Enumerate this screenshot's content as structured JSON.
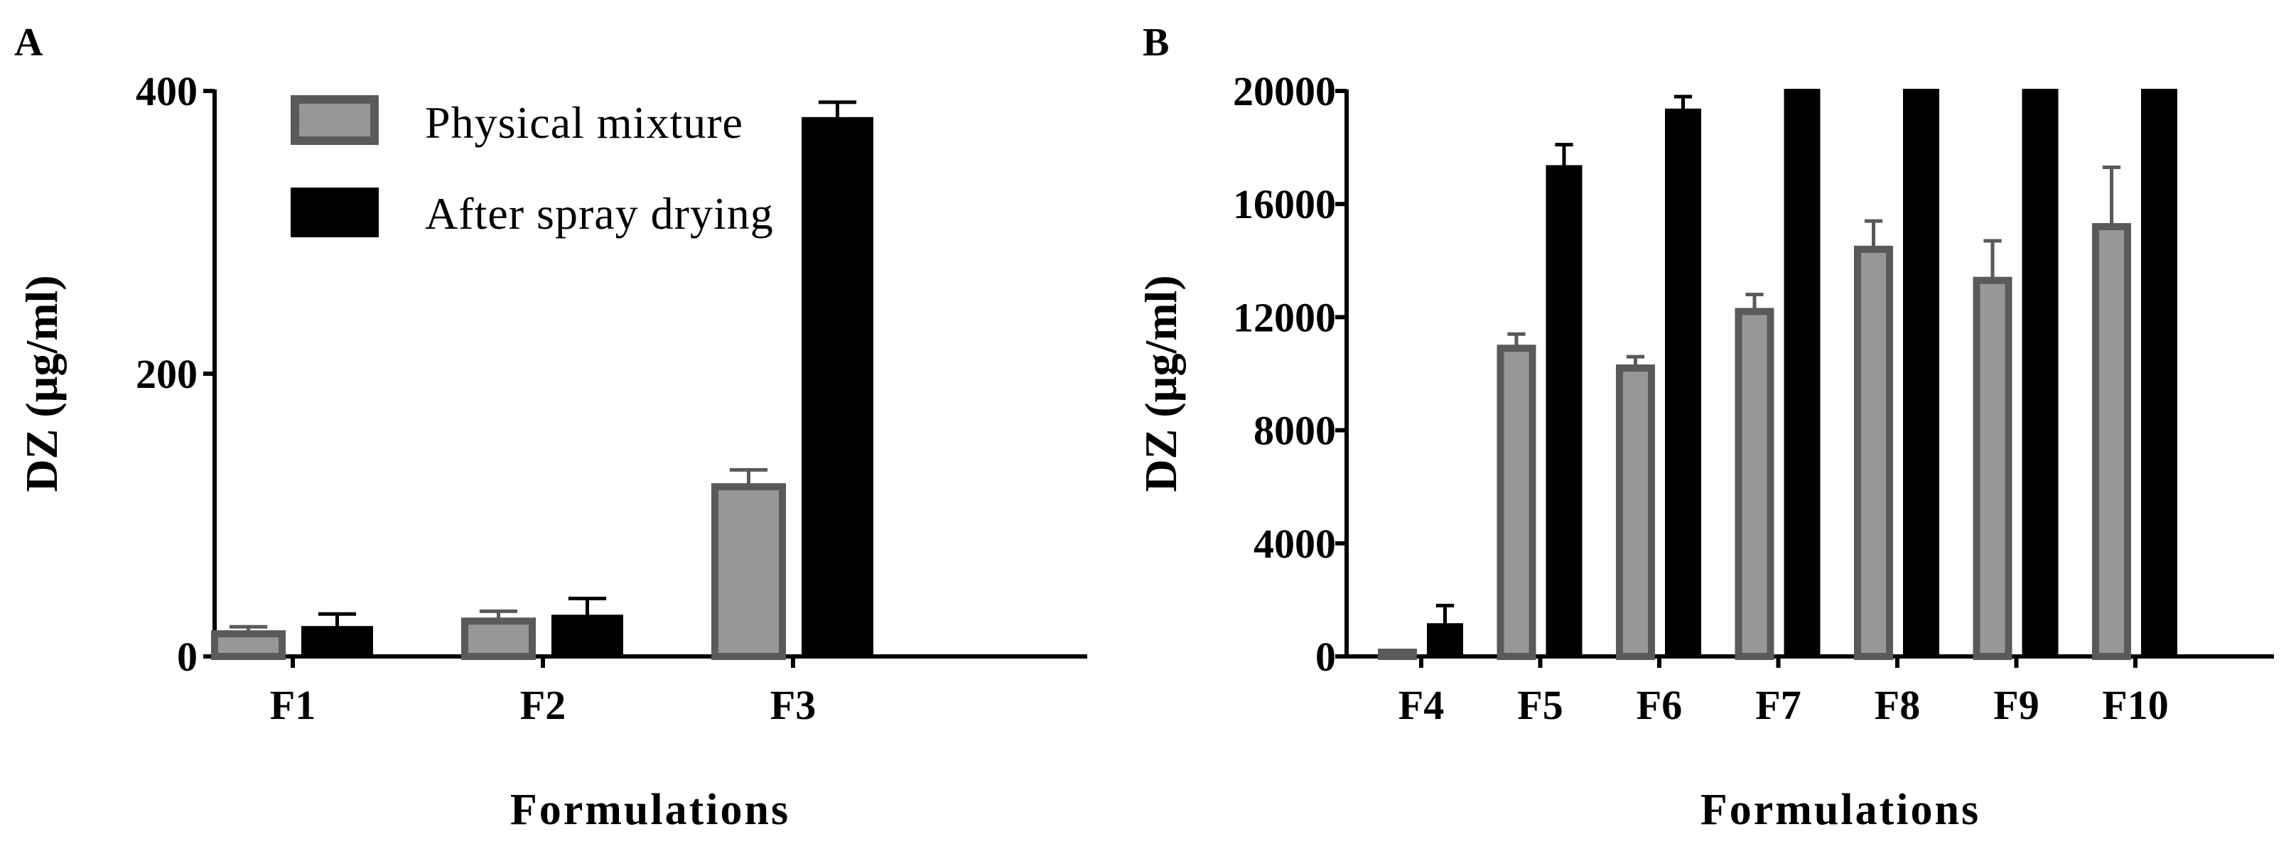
{
  "colors": {
    "physical_fill": "#969896",
    "physical_stroke": "#5a5a5a",
    "spray_fill": "#000000",
    "spray_stroke": "#000000",
    "axis": "#000000"
  },
  "legend": {
    "entries": [
      "Physical mixture",
      "After spray drying"
    ]
  },
  "chart_data": [
    {
      "type": "bar",
      "panel": "A",
      "xlabel": "Formulations",
      "ylabel": "DZ (µg/ml)",
      "ylim": [
        0,
        400
      ],
      "yticks": [
        0,
        200,
        400
      ],
      "ytick_labels": [
        "0",
        "200",
        "400"
      ],
      "categories": [
        "F1",
        "F2",
        "F3"
      ],
      "series": [
        {
          "name": "Physical mixture",
          "values": [
            16,
            25,
            120
          ],
          "errors": [
            5,
            7,
            12
          ]
        },
        {
          "name": "After spray drying",
          "values": [
            20,
            28,
            380
          ],
          "errors": [
            10,
            13,
            12
          ]
        }
      ]
    },
    {
      "type": "bar",
      "panel": "B",
      "xlabel": "Formulations",
      "ylabel": "DZ (µg/ml)",
      "ylim": [
        0,
        20000
      ],
      "yticks": [
        0,
        4000,
        8000,
        12000,
        16000,
        20000
      ],
      "ytick_labels": [
        "0",
        "4000",
        "8000",
        "12000",
        "16000",
        "20000"
      ],
      "categories": [
        "F4",
        "F5",
        "F6",
        "F7",
        "F8",
        "F9",
        "F10"
      ],
      "series": [
        {
          "name": "Physical mixture",
          "values": [
            150,
            10900,
            10200,
            12200,
            14400,
            13300,
            15200
          ],
          "errors": [
            50,
            500,
            400,
            600,
            1000,
            1400,
            2100
          ]
        },
        {
          "name": "After spray drying",
          "values": [
            1100,
            17300,
            19300,
            20000,
            20000,
            20000,
            20000
          ],
          "errors": [
            700,
            800,
            500,
            0,
            0,
            0,
            0
          ]
        }
      ]
    }
  ]
}
